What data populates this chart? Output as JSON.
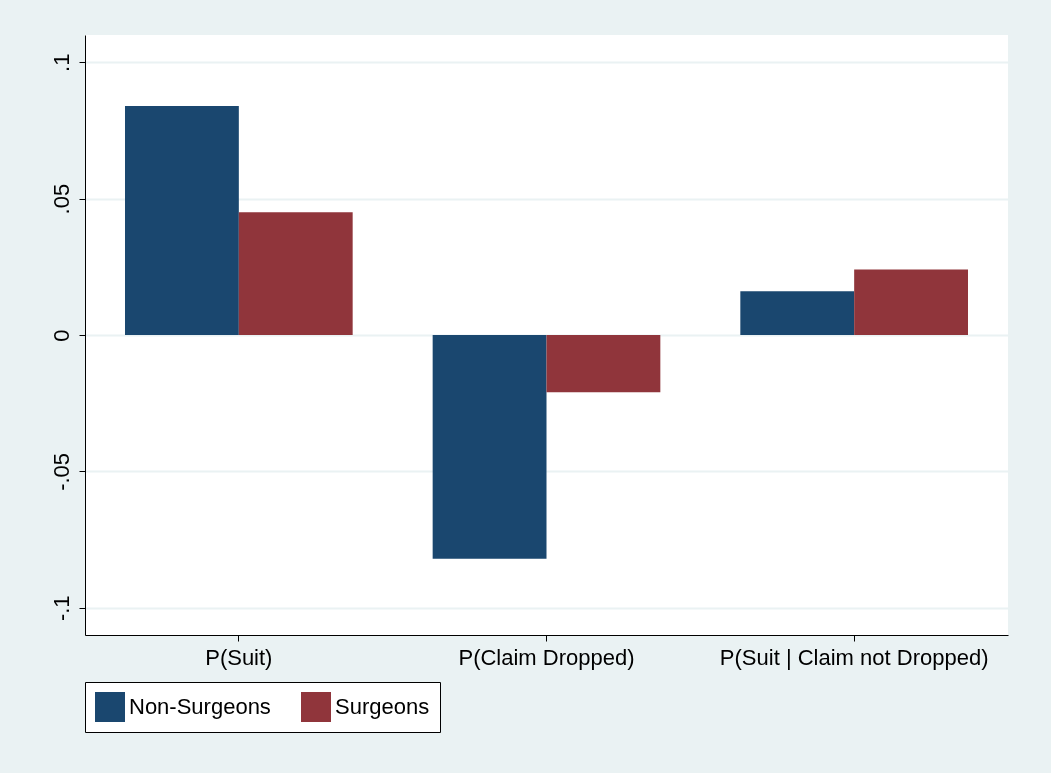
{
  "chart_data": {
    "type": "bar",
    "categories": [
      "P(Suit)",
      "P(Claim Dropped)",
      "P(Suit | Claim not Dropped)"
    ],
    "series": [
      {
        "name": "Non-Surgeons",
        "color": "#1a476f",
        "values": [
          0.084,
          -0.082,
          0.016
        ]
      },
      {
        "name": "Surgeons",
        "color": "#90353b",
        "values": [
          0.045,
          -0.021,
          0.024
        ]
      }
    ],
    "ylim": [
      -0.11,
      0.11
    ],
    "yticks": [
      {
        "value": -0.1,
        "label": "-.1"
      },
      {
        "value": -0.05,
        "label": "-.05"
      },
      0,
      {
        "value": 0.05,
        "label": ".05"
      },
      {
        "value": 0.1,
        "label": ".1"
      }
    ],
    "grid": "y",
    "legend": "bottom"
  }
}
